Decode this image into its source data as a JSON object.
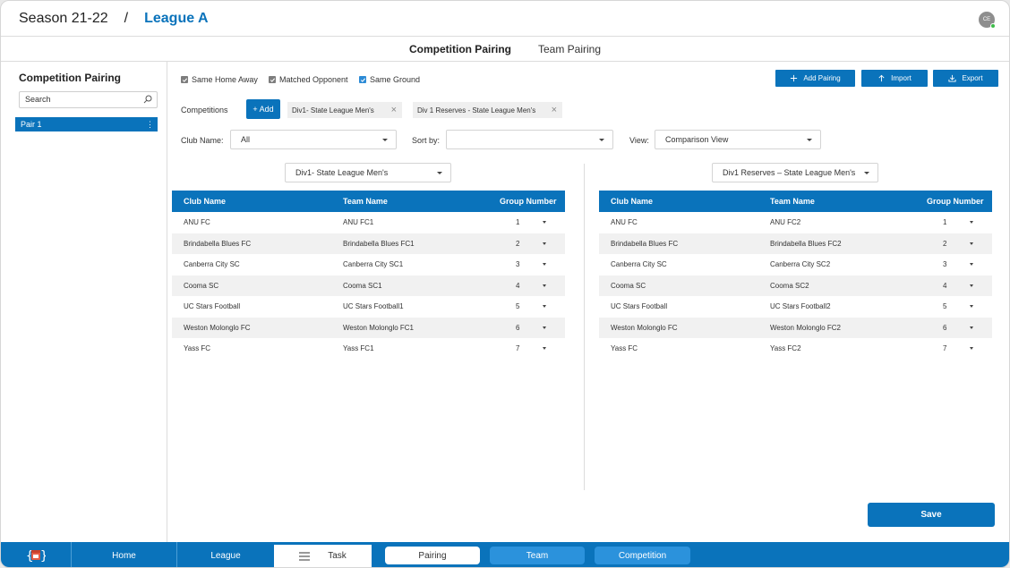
{
  "header": {
    "season": "Season 21-22",
    "separator": "/",
    "league": "League A",
    "avatar_initials": "CE"
  },
  "tabs": [
    {
      "label": "Competition Pairing",
      "active": true
    },
    {
      "label": "Team Pairing",
      "active": false
    }
  ],
  "sidebar": {
    "title": "Competition Pairing",
    "search_placeholder": "Search",
    "pairs": [
      {
        "label": "Pair 1"
      }
    ]
  },
  "options": {
    "same_home_away": {
      "label": "Same Home Away",
      "checked": true
    },
    "matched_opponent": {
      "label": "Matched Opponent",
      "checked": true
    },
    "same_ground": {
      "label": "Same Ground",
      "checked": true
    }
  },
  "actions": {
    "add_pairing": "Add Pairing",
    "import": "Import",
    "export": "Export"
  },
  "competitions": {
    "label": "Competitions",
    "add_label": "+ Add",
    "chips": [
      "Div1- State League Men's",
      "Div 1 Reserves - State League Men's"
    ]
  },
  "filters": {
    "club_name": {
      "label": "Club Name:",
      "value": "All"
    },
    "sort_by": {
      "label": "Sort by:",
      "value": ""
    },
    "view": {
      "label": "View:",
      "value": "Comparison View"
    }
  },
  "left_table": {
    "competition": "Div1- State League Men's",
    "headers": {
      "club": "Club Name",
      "team": "Team Name",
      "group": "Group Number"
    },
    "rows": [
      {
        "club": "ANU FC",
        "team": "ANU FC1",
        "group": "1"
      },
      {
        "club": "Brindabella Blues FC",
        "team": "Brindabella Blues FC1",
        "group": "2"
      },
      {
        "club": "Canberra City SC",
        "team": "Canberra City SC1",
        "group": "3"
      },
      {
        "club": "Cooma SC",
        "team": "Cooma SC1",
        "group": "4"
      },
      {
        "club": "UC Stars Football",
        "team": "UC Stars Football1",
        "group": "5"
      },
      {
        "club": "Weston Molonglo FC",
        "team": "Weston Molonglo FC1",
        "group": "6"
      },
      {
        "club": "Yass FC",
        "team": "Yass FC1",
        "group": "7"
      }
    ]
  },
  "right_table": {
    "competition": "Div1 Reserves – State League Men's",
    "headers": {
      "club": "Club Name",
      "team": "Team Name",
      "group": "Group Number"
    },
    "rows": [
      {
        "club": "ANU FC",
        "team": "ANU FC2",
        "group": "1"
      },
      {
        "club": "Brindabella Blues FC",
        "team": "Brindabella Blues FC2",
        "group": "2"
      },
      {
        "club": "Canberra City SC",
        "team": "Canberra City SC2",
        "group": "3"
      },
      {
        "club": "Cooma SC",
        "team": "Cooma SC2",
        "group": "4"
      },
      {
        "club": "UC Stars Football",
        "team": "UC Stars Football2",
        "group": "5"
      },
      {
        "club": "Weston Molonglo FC",
        "team": "Weston Molonglo FC2",
        "group": "6"
      },
      {
        "club": "Yass FC",
        "team": "Yass FC2",
        "group": "7"
      }
    ]
  },
  "save_label": "Save",
  "bottom_nav": {
    "home": "Home",
    "league": "League",
    "task": "Task",
    "pairing": "Pairing",
    "team": "Team",
    "competition": "Competition"
  },
  "colors": {
    "primary": "#0a73bb",
    "pill": "#2b92dc"
  }
}
